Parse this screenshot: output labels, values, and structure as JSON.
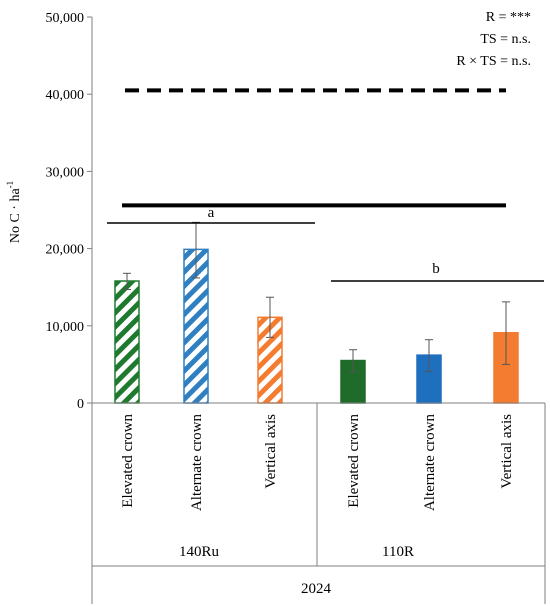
{
  "chart_data": {
    "type": "bar",
    "ylabel": "No C · ha",
    "ylabel_sup": "-1",
    "ylim": [
      0,
      50000
    ],
    "yticks": [
      0,
      10000,
      20000,
      30000,
      40000,
      50000
    ],
    "ytick_labels": [
      "0",
      "10,000",
      "20,000",
      "30,000",
      "40,000",
      "50,000"
    ],
    "year_label": "2024",
    "groups": [
      {
        "label": "140Ru",
        "significance": "a",
        "bars": [
          {
            "category": "Elevated crown",
            "value": 15800,
            "error_low": 14700,
            "error_high": 16800,
            "color": "#1e7a2f",
            "pattern": "hatched"
          },
          {
            "category": "Alternate crown",
            "value": 19900,
            "error_low": 16200,
            "error_high": 23400,
            "color": "#2f7fc1",
            "pattern": "hatched"
          },
          {
            "category": "Vertical axis",
            "value": 11100,
            "error_low": 8500,
            "error_high": 13700,
            "color": "#f47c30",
            "pattern": "hatched"
          }
        ]
      },
      {
        "label": "110R",
        "significance": "b",
        "bars": [
          {
            "category": "Elevated crown",
            "value": 5500,
            "error_low": 4000,
            "error_high": 6900,
            "color": "#1e6b2a",
            "pattern": "solid"
          },
          {
            "category": "Alternate crown",
            "value": 6200,
            "error_low": 4100,
            "error_high": 8200,
            "color": "#1f6fbf",
            "pattern": "solid"
          },
          {
            "category": "Vertical axis",
            "value": 9100,
            "error_low": 5000,
            "error_high": 13100,
            "color": "#f47c30",
            "pattern": "solid"
          }
        ]
      }
    ],
    "reference_lines": [
      {
        "value": 40500,
        "style": "dashed"
      },
      {
        "value": 25600,
        "style": "solid"
      }
    ],
    "stats": [
      "R = ***",
      "TS = n.s.",
      "R × TS = n.s."
    ],
    "grid": false,
    "legend": "none"
  }
}
